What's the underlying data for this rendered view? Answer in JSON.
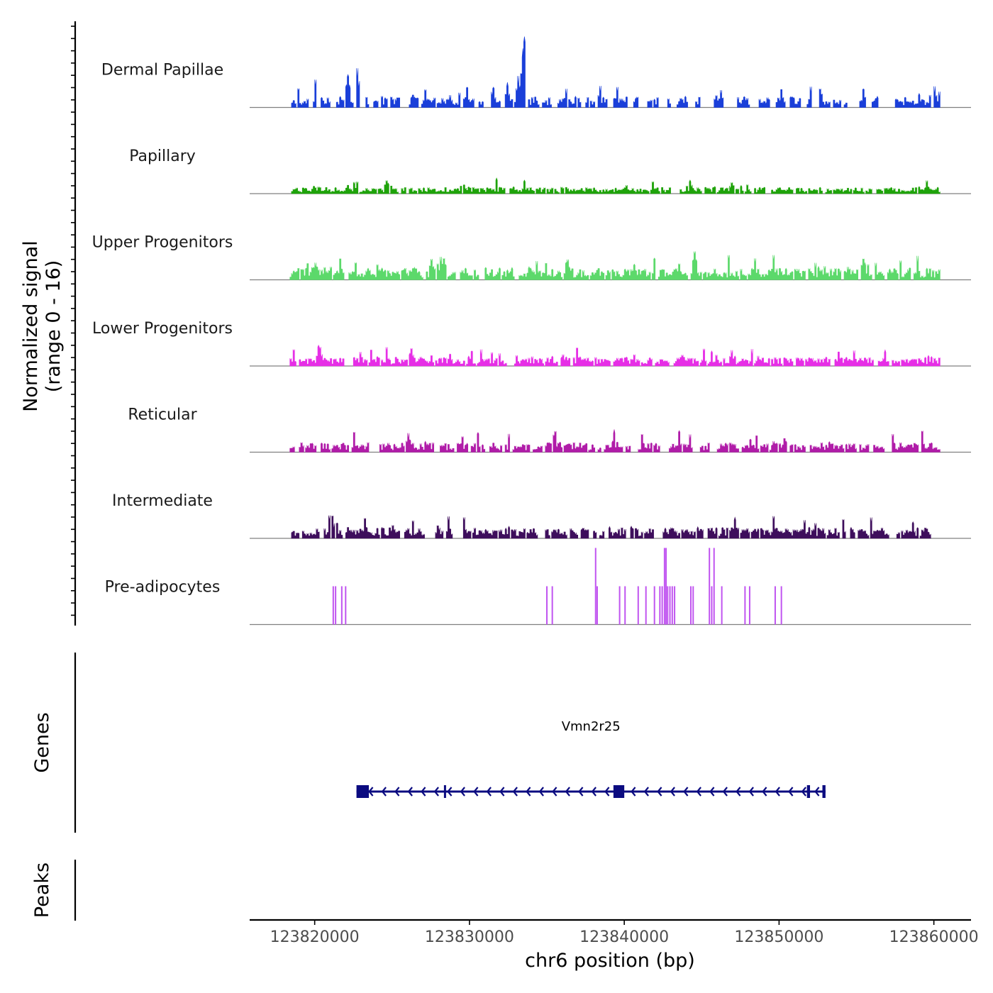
{
  "chart_data": {
    "type": "coverage",
    "chromosome": "chr6",
    "region": [
      123815800,
      123862400
    ],
    "xlabel": "chr6 position (bp)",
    "x_ticks": [
      {
        "value": 123820000,
        "label": "123820000"
      },
      {
        "value": 123830000,
        "label": "123830000"
      },
      {
        "value": 123840000,
        "label": "123840000"
      },
      {
        "value": 123850000,
        "label": "123850000"
      },
      {
        "value": 123860000,
        "label": "123860000"
      }
    ],
    "coverage": {
      "ylabel": [
        "Normalized signal",
        "(range 0 - 16)"
      ],
      "range": [
        0,
        16
      ],
      "tracks": [
        {
          "name": "Dermal Papillae",
          "color": "#1a3fd9",
          "seed": 11,
          "density": 0.26,
          "base": 0.12,
          "peaks": [
            {
              "pos": 123820100,
              "h": 0.55
            },
            {
              "pos": 123822100,
              "h": 0.42
            },
            {
              "pos": 123822700,
              "h": 0.58
            },
            {
              "pos": 123823200,
              "h": 0.22
            },
            {
              "pos": 123825800,
              "h": 0.25
            },
            {
              "pos": 123829400,
              "h": 0.3
            },
            {
              "pos": 123832400,
              "h": 0.3
            },
            {
              "pos": 123833100,
              "h": 0.42
            },
            {
              "pos": 123833300,
              "h": 0.5
            },
            {
              "pos": 123833500,
              "h": 1.0
            },
            {
              "pos": 123838200,
              "h": 0.28
            },
            {
              "pos": 123852600,
              "h": 0.28
            },
            {
              "pos": 123856600,
              "h": 0.3
            },
            {
              "pos": 123860000,
              "h": 0.28
            }
          ]
        },
        {
          "name": "Papillary",
          "color": "#1fa30a",
          "seed": 23,
          "density": 0.62,
          "base": 0.07,
          "peaks": [
            {
              "pos": 123824600,
              "h": 0.18
            },
            {
              "pos": 123829500,
              "h": 0.17
            },
            {
              "pos": 123846900,
              "h": 0.17
            }
          ]
        },
        {
          "name": "Upper Progenitors",
          "color": "#5cd96b",
          "seed": 37,
          "density": 0.6,
          "base": 0.13,
          "peaks": [
            {
              "pos": 123820000,
              "h": 0.25
            },
            {
              "pos": 123827500,
              "h": 0.28
            },
            {
              "pos": 123828300,
              "h": 0.3
            },
            {
              "pos": 123844500,
              "h": 0.4
            },
            {
              "pos": 123855400,
              "h": 0.3
            }
          ]
        },
        {
          "name": "Lower Progenitors",
          "color": "#e62ee6",
          "seed": 41,
          "density": 0.6,
          "base": 0.1,
          "peaks": [
            {
              "pos": 123820300,
              "h": 0.25
            },
            {
              "pos": 123826200,
              "h": 0.24
            },
            {
              "pos": 123836000,
              "h": 0.16
            }
          ]
        },
        {
          "name": "Reticular",
          "color": "#b01ca8",
          "seed": 53,
          "density": 0.5,
          "base": 0.11,
          "peaks": [
            {
              "pos": 123826000,
              "h": 0.26
            },
            {
              "pos": 123835400,
              "h": 0.24
            },
            {
              "pos": 123844500,
              "h": 0.3
            },
            {
              "pos": 123857100,
              "h": 0.22
            }
          ]
        },
        {
          "name": "Intermediate",
          "color": "#3e0e5c",
          "seed": 67,
          "density": 0.44,
          "base": 0.12,
          "peaks": [
            {
              "pos": 123821300,
              "h": 0.3
            },
            {
              "pos": 123827200,
              "h": 0.24
            },
            {
              "pos": 123842300,
              "h": 0.2
            }
          ]
        },
        {
          "name": "Pre-adipocytes",
          "color": "#c054f0",
          "bars": [
            {
              "pos": 123821200,
              "h": 0.5
            },
            {
              "pos": 123821350,
              "h": 0.5
            },
            {
              "pos": 123821750,
              "h": 0.5
            },
            {
              "pos": 123822000,
              "h": 0.5
            },
            {
              "pos": 123835000,
              "h": 0.5
            },
            {
              "pos": 123835350,
              "h": 0.5
            },
            {
              "pos": 123838150,
              "h": 1.0
            },
            {
              "pos": 123838250,
              "h": 0.5
            },
            {
              "pos": 123839700,
              "h": 0.5
            },
            {
              "pos": 123840050,
              "h": 0.5
            },
            {
              "pos": 123840900,
              "h": 0.5
            },
            {
              "pos": 123841400,
              "h": 0.5
            },
            {
              "pos": 123841950,
              "h": 0.5
            },
            {
              "pos": 123842300,
              "h": 0.5
            },
            {
              "pos": 123842450,
              "h": 0.5
            },
            {
              "pos": 123842600,
              "h": 1.0
            },
            {
              "pos": 123842700,
              "h": 1.0
            },
            {
              "pos": 123842800,
              "h": 0.5
            },
            {
              "pos": 123842950,
              "h": 0.5
            },
            {
              "pos": 123843100,
              "h": 0.5
            },
            {
              "pos": 123843250,
              "h": 0.5
            },
            {
              "pos": 123844300,
              "h": 0.5
            },
            {
              "pos": 123844450,
              "h": 0.5
            },
            {
              "pos": 123845500,
              "h": 1.0
            },
            {
              "pos": 123845650,
              "h": 0.5
            },
            {
              "pos": 123845800,
              "h": 1.0
            },
            {
              "pos": 123846300,
              "h": 0.5
            },
            {
              "pos": 123847800,
              "h": 0.5
            },
            {
              "pos": 123848100,
              "h": 0.5
            },
            {
              "pos": 123849750,
              "h": 0.5
            },
            {
              "pos": 123850150,
              "h": 0.5
            }
          ]
        }
      ]
    },
    "genes": {
      "ylabel": "Genes",
      "items": [
        {
          "name": "Vmn2r25",
          "start": 123822700,
          "end": 123853000,
          "strand": "-",
          "exons": [
            [
              123822700,
              123823500
            ],
            [
              123828350,
              123828450
            ],
            [
              123839300,
              123840000
            ],
            [
              123851800,
              123852000
            ],
            [
              123852800,
              123853000
            ]
          ]
        }
      ]
    },
    "peaks": {
      "ylabel": "Peaks",
      "items": []
    }
  }
}
